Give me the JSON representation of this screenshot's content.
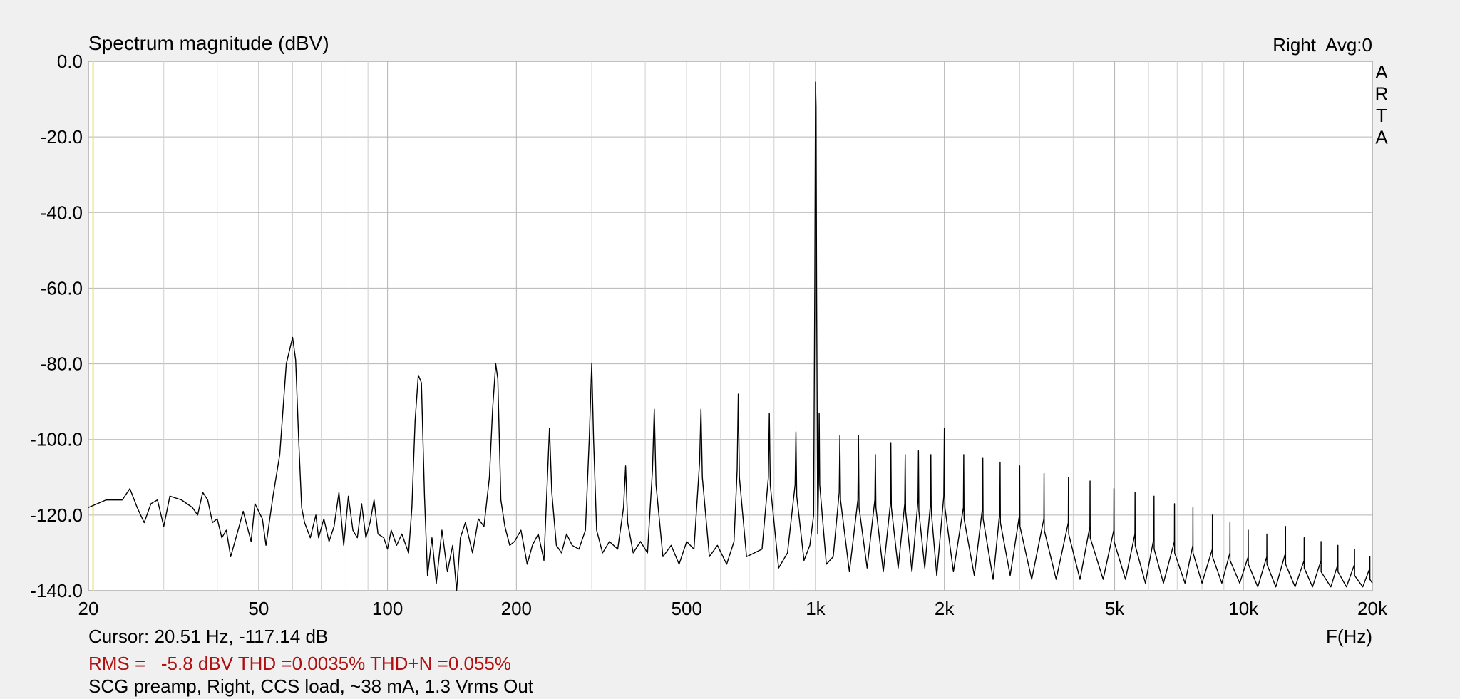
{
  "chart_data": {
    "type": "line",
    "title": "Spectrum magnitude (dBV)",
    "channel_label": "Right  Avg:0",
    "watermark": [
      "A",
      "R",
      "T",
      "A"
    ],
    "x_label": "F(Hz)",
    "cursor_text": "Cursor: 20.51 Hz, -117.14 dB",
    "cursor_x": 20.51,
    "measurement_text": "RMS =   -5.8 dBV THD =0.0035% THD+N =0.055%",
    "description": "SCG preamp, Right, CCS load, ~38 mA, 1.3 Vrms Out",
    "log_x": true,
    "grid": true,
    "color": "#000000",
    "xlim": [
      20,
      20000
    ],
    "ylim": [
      -140,
      0
    ],
    "xticks": [
      20,
      50,
      100,
      200,
      500,
      {
        "value": 1000,
        "label": "1k"
      },
      {
        "value": 2000,
        "label": "2k"
      },
      {
        "value": 5000,
        "label": "5k"
      },
      {
        "value": 10000,
        "label": "10k"
      },
      {
        "value": 20000,
        "label": "20k"
      }
    ],
    "xminor": [
      30,
      40,
      60,
      70,
      80,
      90,
      300,
      400,
      600,
      700,
      800,
      900,
      3000,
      4000,
      6000,
      7000,
      8000,
      9000
    ],
    "yticks": [
      {
        "value": 0,
        "label": "0.0"
      },
      {
        "value": -20,
        "label": "-20.0"
      },
      {
        "value": -40,
        "label": "-40.0"
      },
      {
        "value": -60,
        "label": "-60.0"
      },
      {
        "value": -80,
        "label": "-80.0"
      },
      {
        "value": -100,
        "label": "-100.0"
      },
      {
        "value": -120,
        "label": "-120.0"
      },
      {
        "value": -140,
        "label": "-140.0"
      }
    ],
    "x": [
      20,
      22,
      24,
      25,
      26,
      27,
      28,
      29,
      30,
      31,
      33,
      35,
      36,
      37,
      38,
      39,
      40,
      41,
      42,
      43,
      45,
      46,
      48,
      49,
      51,
      52,
      54,
      56,
      58,
      60,
      61,
      62,
      63,
      64,
      66,
      68,
      69,
      71,
      73,
      75,
      77,
      79,
      81,
      83,
      85,
      87,
      89,
      91,
      93,
      95,
      98,
      100,
      102,
      105,
      108,
      112,
      114,
      116,
      118,
      120,
      122,
      124,
      127,
      130,
      134,
      138,
      142,
      145,
      148,
      152,
      158,
      163,
      168,
      173,
      176,
      179,
      181,
      184,
      188,
      193,
      198,
      205,
      212,
      218,
      225,
      232,
      236,
      239,
      242,
      248,
      255,
      262,
      270,
      280,
      290,
      296,
      300,
      303,
      308,
      318,
      330,
      345,
      356,
      360,
      364,
      375,
      390,
      405,
      416,
      420,
      424,
      440,
      460,
      480,
      500,
      520,
      536,
      540,
      544,
      565,
      590,
      620,
      645,
      656,
      660,
      664,
      690,
      720,
      750,
      776,
      780,
      784,
      820,
      860,
      896,
      900,
      904,
      940,
      970,
      990,
      996,
      1000,
      1003,
      1006,
      1012,
      1017,
      1020,
      1023,
      1060,
      1100,
      1136,
      1140,
      1144,
      1200,
      1256,
      1260,
      1264,
      1320,
      1376,
      1380,
      1384,
      1440,
      1496,
      1500,
      1504,
      1560,
      1616,
      1620,
      1624,
      1680,
      1736,
      1740,
      1744,
      1800,
      1856,
      1860,
      1864,
      1920,
      1994,
      2000,
      2006,
      2100,
      2216,
      2220,
      2224,
      2350,
      2456,
      2460,
      2464,
      2600,
      2696,
      2700,
      2704,
      2850,
      2996,
      3000,
      3004,
      3200,
      3416,
      3420,
      3424,
      3650,
      3896,
      3900,
      3904,
      4150,
      4376,
      4380,
      4384,
      4700,
      4976,
      4980,
      4984,
      5300,
      5576,
      5580,
      5584,
      5900,
      6176,
      6180,
      6184,
      6500,
      6896,
      6900,
      6904,
      7300,
      7616,
      7620,
      7624,
      8000,
      8456,
      8460,
      8464,
      8900,
      9296,
      9300,
      9304,
      9800,
      10256,
      10260,
      10264,
      10800,
      11336,
      11340,
      11344,
      11900,
      12536,
      12540,
      12544,
      13200,
      13856,
      13860,
      13864,
      14500,
      15176,
      15180,
      15184,
      16000,
      16616,
      16620,
      16624,
      17400,
      18176,
      18180,
      18184,
      19000,
      19736,
      19740,
      19744,
      20000
    ],
    "values": [
      -118,
      -116,
      -116,
      -113,
      -118,
      -122,
      -117,
      -116,
      -123,
      -115,
      -116,
      -118,
      -120,
      -114,
      -116,
      -122,
      -121,
      -126,
      -124,
      -131,
      -123,
      -119,
      -127,
      -117,
      -121,
      -128,
      -115,
      -104,
      -80,
      -73,
      -79,
      -100,
      -118,
      -122,
      -126,
      -120,
      -126,
      -121,
      -127,
      -123,
      -114,
      -128,
      -115,
      -124,
      -126,
      -117,
      -126,
      -122,
      -116,
      -125,
      -126,
      -129,
      -124,
      -128,
      -125,
      -130,
      -118,
      -95,
      -83,
      -85,
      -115,
      -136,
      -126,
      -138,
      -124,
      -135,
      -128,
      -140,
      -126,
      -122,
      -130,
      -121,
      -123,
      -110,
      -92,
      -80,
      -84,
      -116,
      -123,
      -128,
      -127,
      -124,
      -133,
      -128,
      -125,
      -132,
      -112,
      -97,
      -114,
      -128,
      -130,
      -125,
      -128,
      -129,
      -124,
      -100,
      -80,
      -100,
      -124,
      -130,
      -127,
      -129,
      -118,
      -107,
      -122,
      -130,
      -127,
      -130,
      -108,
      -92,
      -112,
      -131,
      -128,
      -133,
      -127,
      -129,
      -106,
      -92,
      -110,
      -131,
      -128,
      -133,
      -127,
      -108,
      -88,
      -110,
      -131,
      -130,
      -129,
      -110,
      -93,
      -112,
      -134,
      -130,
      -112,
      -98,
      -115,
      -132,
      -128,
      -120,
      -60,
      -5.5,
      -12,
      -60,
      -125,
      -110,
      -93,
      -112,
      -133,
      -131,
      -114,
      -99,
      -116,
      -135,
      -116,
      -99,
      -118,
      -134,
      -116,
      -104,
      -118,
      -135,
      -117,
      -101,
      -118,
      -134,
      -117,
      -104,
      -119,
      -135,
      -116,
      -103,
      -119,
      -134,
      -117,
      -104,
      -119,
      -136,
      -115,
      -97,
      -118,
      -135,
      -118,
      -104,
      -121,
      -136,
      -118,
      -105,
      -121,
      -137,
      -119,
      -106,
      -122,
      -136,
      -120,
      -107,
      -123,
      -137,
      -121,
      -109,
      -124,
      -137,
      -122,
      -110,
      -125,
      -137,
      -123,
      -111,
      -126,
      -137,
      -124,
      -113,
      -127,
      -137,
      -125,
      -114,
      -128,
      -138,
      -126,
      -115,
      -129,
      -138,
      -127,
      -117,
      -130,
      -138,
      -128,
      -118,
      -130,
      -138,
      -129,
      -120,
      -131,
      -138,
      -130,
      -122,
      -132,
      -138,
      -131,
      -124,
      -133,
      -139,
      -131,
      -125,
      -133,
      -139,
      -130,
      -123,
      -133,
      -139,
      -132,
      -126,
      -134,
      -139,
      -132,
      -127,
      -135,
      -139,
      -133,
      -128,
      -135,
      -139,
      -133,
      -129,
      -136,
      -139,
      -134,
      -131,
      -137,
      -138
    ]
  }
}
